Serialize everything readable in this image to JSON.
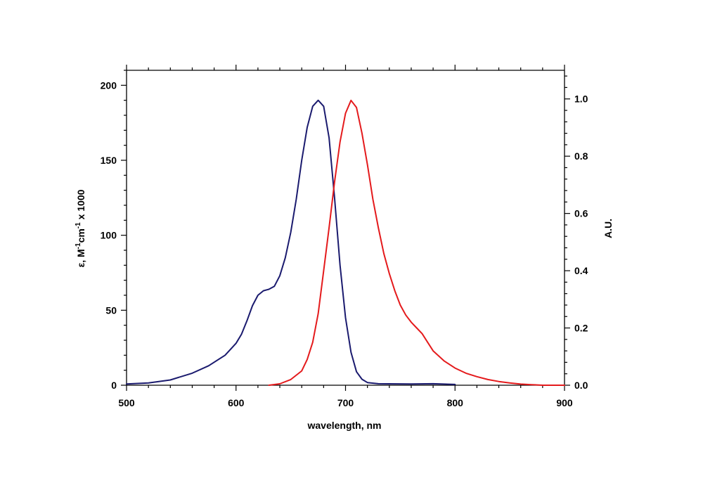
{
  "chart_data": {
    "type": "line",
    "xlabel": "wavelength, nm",
    "ylabel_left": {
      "base": "ε, M",
      "sup1": "-1",
      "mid": "cm",
      "sup2": "-1",
      "tail": " x 1000"
    },
    "ylabel_right": "A.U.",
    "xlim": [
      500,
      900
    ],
    "ylim_left": [
      0,
      210
    ],
    "ylim_right": [
      0,
      1.1
    ],
    "x_ticks": [
      500,
      600,
      700,
      800,
      900
    ],
    "y_left_ticks": [
      0,
      50,
      100,
      150,
      200
    ],
    "y_right_ticks": [
      "0.0",
      "0.2",
      "0.4",
      "0.6",
      "0.8",
      "1.0"
    ],
    "grid": false,
    "legend": "none",
    "series": [
      {
        "axis": "left",
        "color": "#1a1a6e",
        "points": [
          [
            500,
            0.8
          ],
          [
            520,
            1.5
          ],
          [
            540,
            3.5
          ],
          [
            560,
            8
          ],
          [
            575,
            13
          ],
          [
            590,
            20
          ],
          [
            600,
            28
          ],
          [
            605,
            34
          ],
          [
            610,
            43
          ],
          [
            615,
            53
          ],
          [
            620,
            60
          ],
          [
            625,
            63
          ],
          [
            630,
            64
          ],
          [
            635,
            66
          ],
          [
            640,
            73
          ],
          [
            645,
            85
          ],
          [
            650,
            102
          ],
          [
            655,
            124
          ],
          [
            660,
            150
          ],
          [
            665,
            172
          ],
          [
            670,
            186
          ],
          [
            675,
            190
          ],
          [
            680,
            186
          ],
          [
            685,
            165
          ],
          [
            690,
            125
          ],
          [
            695,
            80
          ],
          [
            700,
            45
          ],
          [
            705,
            22
          ],
          [
            710,
            9
          ],
          [
            715,
            4
          ],
          [
            720,
            1.8
          ],
          [
            730,
            1
          ],
          [
            760,
            0.8
          ],
          [
            780,
            1
          ],
          [
            800,
            0.5
          ]
        ]
      },
      {
        "axis": "right",
        "color": "#e41a1c",
        "points": [
          [
            630,
            0.0
          ],
          [
            640,
            0.005
          ],
          [
            650,
            0.02
          ],
          [
            660,
            0.05
          ],
          [
            665,
            0.09
          ],
          [
            670,
            0.15
          ],
          [
            675,
            0.25
          ],
          [
            680,
            0.4
          ],
          [
            685,
            0.55
          ],
          [
            690,
            0.71
          ],
          [
            695,
            0.85
          ],
          [
            700,
            0.95
          ],
          [
            705,
            0.995
          ],
          [
            710,
            0.97
          ],
          [
            715,
            0.88
          ],
          [
            720,
            0.77
          ],
          [
            725,
            0.65
          ],
          [
            730,
            0.55
          ],
          [
            735,
            0.46
          ],
          [
            740,
            0.39
          ],
          [
            745,
            0.33
          ],
          [
            750,
            0.28
          ],
          [
            755,
            0.245
          ],
          [
            760,
            0.22
          ],
          [
            765,
            0.2
          ],
          [
            770,
            0.18
          ],
          [
            775,
            0.15
          ],
          [
            780,
            0.12
          ],
          [
            790,
            0.085
          ],
          [
            800,
            0.06
          ],
          [
            810,
            0.042
          ],
          [
            820,
            0.03
          ],
          [
            830,
            0.02
          ],
          [
            840,
            0.013
          ],
          [
            850,
            0.008
          ],
          [
            860,
            0.004
          ],
          [
            870,
            0.002
          ],
          [
            880,
            0.0
          ],
          [
            900,
            0.0
          ]
        ]
      }
    ]
  }
}
